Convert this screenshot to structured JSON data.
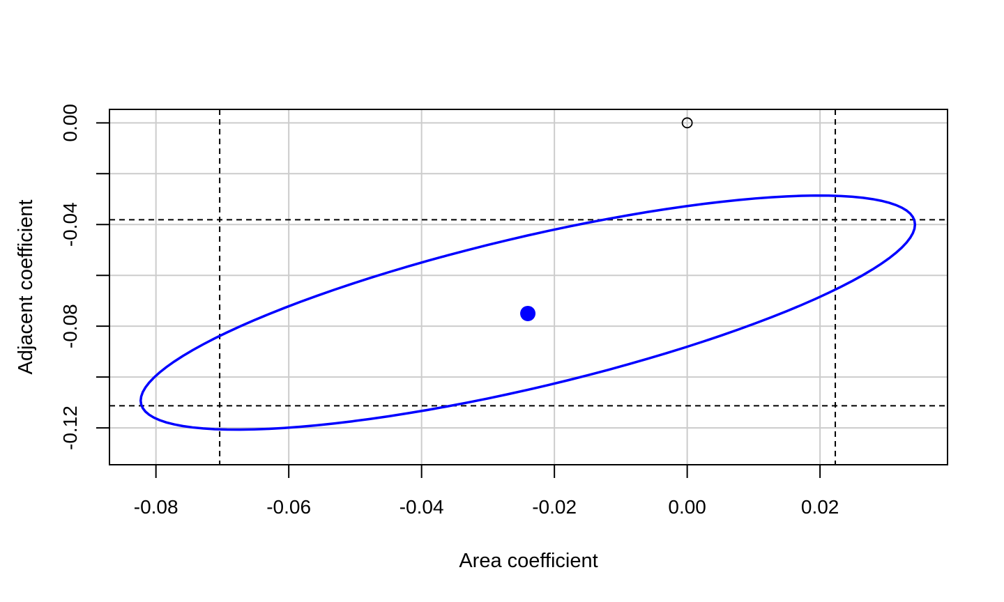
{
  "chart_data": {
    "type": "scatter",
    "title": "",
    "xlabel": "Area coefficient",
    "ylabel": "Adjacent coefficient",
    "xlim": [
      -0.087,
      0.0392
    ],
    "ylim": [
      -0.1345,
      0.0053
    ],
    "x_ticks": [
      -0.08,
      -0.06,
      -0.04,
      -0.02,
      0.0,
      0.02
    ],
    "x_tick_labels": [
      "-0.08",
      "-0.06",
      "-0.04",
      "-0.02",
      "0.00",
      "0.02"
    ],
    "y_ticks": [
      -0.12,
      -0.08,
      -0.04,
      0.0
    ],
    "y_tick_labels": [
      "-0.12",
      "-0.08",
      "-0.04",
      "0.00"
    ],
    "x_grid": [
      -0.08,
      -0.06,
      -0.04,
      -0.02,
      0.0,
      0.02
    ],
    "y_grid": [
      -0.12,
      -0.1,
      -0.08,
      -0.06,
      -0.04,
      -0.02,
      0.0
    ],
    "grid": true,
    "estimate_point": {
      "x": -0.024,
      "y": -0.075,
      "color": "#0000ff"
    },
    "origin_point": {
      "x": 0.0,
      "y": 0.0,
      "color": "#000000"
    },
    "confidence_ellipse": {
      "color": "#0000ff",
      "center": [
        -0.024,
        -0.075
      ],
      "x_range": [
        -0.0823,
        0.0343
      ],
      "y_range": [
        -0.1207,
        -0.0286
      ]
    },
    "interval_lines": {
      "x": [
        -0.0704,
        0.0223
      ],
      "y": [
        -0.0381,
        -0.1113
      ],
      "color": "#000000",
      "style": "dashed"
    },
    "colors": {
      "grid": "#cccccc",
      "axis": "#000000",
      "series": "#0000ff"
    }
  }
}
